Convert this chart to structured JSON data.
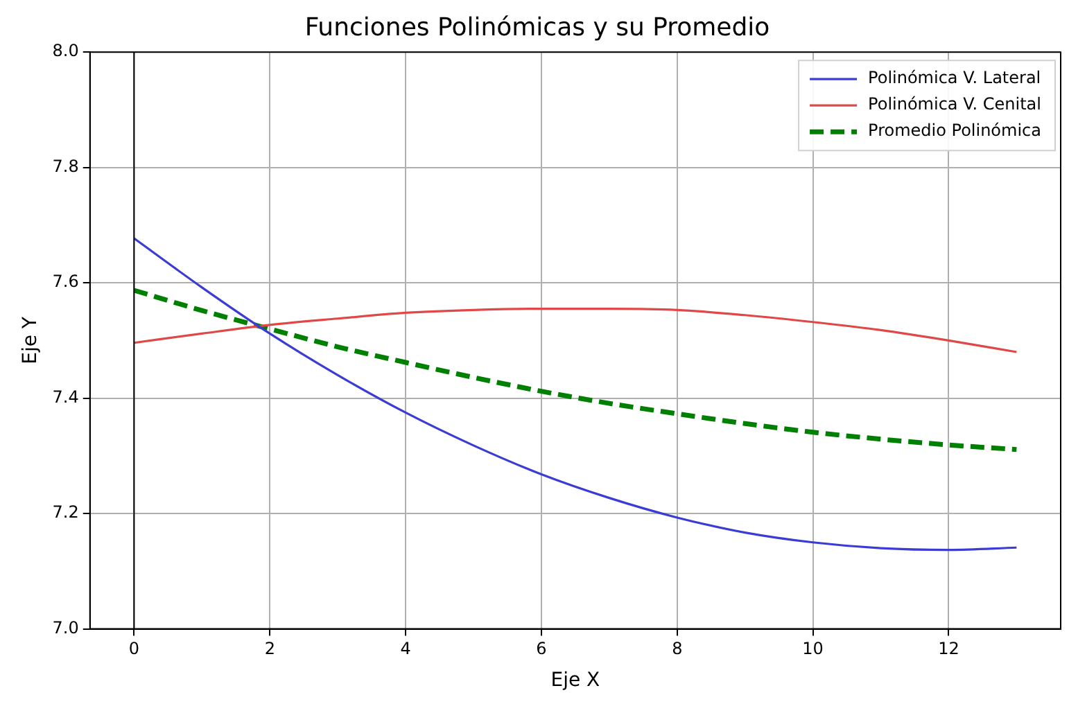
{
  "chart_data": {
    "type": "line",
    "title": "Funciones Polinómicas y su Promedio",
    "xlabel": "Eje X",
    "ylabel": "Eje Y",
    "x": [
      0,
      1,
      2,
      3,
      4,
      5,
      6,
      7,
      8,
      9,
      10,
      11,
      12,
      13
    ],
    "series": [
      {
        "name": "Polinómica V. Lateral",
        "color": "#3b3bd6",
        "values": [
          7.677,
          7.592,
          7.512,
          7.44,
          7.375,
          7.318,
          7.268,
          7.227,
          7.193,
          7.167,
          7.15,
          7.14,
          7.137,
          7.141
        ]
      },
      {
        "name": "Polinómica V. Cenital",
        "color": "#e04848",
        "values": [
          7.496,
          7.512,
          7.527,
          7.538,
          7.548,
          7.553,
          7.555,
          7.555,
          7.553,
          7.544,
          7.532,
          7.518,
          7.5,
          7.48
        ]
      },
      {
        "name": "Promedio Polinómica",
        "color": "#008000",
        "line_style": "dashed",
        "values": [
          7.587,
          7.552,
          7.52,
          7.489,
          7.462,
          7.436,
          7.412,
          7.391,
          7.373,
          7.356,
          7.341,
          7.329,
          7.319,
          7.311
        ]
      }
    ],
    "xlim": [
      -0.65,
      13.65
    ],
    "xticks": [
      0,
      2,
      4,
      6,
      8,
      10,
      12
    ],
    "ylim": [
      7.0,
      8.0
    ],
    "yticks": [
      {
        "value": 7.0,
        "label": "7.0"
      },
      7.2,
      7.4,
      7.6,
      7.8,
      {
        "value": 8.0,
        "label": "8.0"
      }
    ],
    "ref_lines": [
      {
        "axis": "x",
        "value": 0,
        "color": "#000000"
      }
    ],
    "grid": true,
    "legend": "top right",
    "marker": "none"
  }
}
